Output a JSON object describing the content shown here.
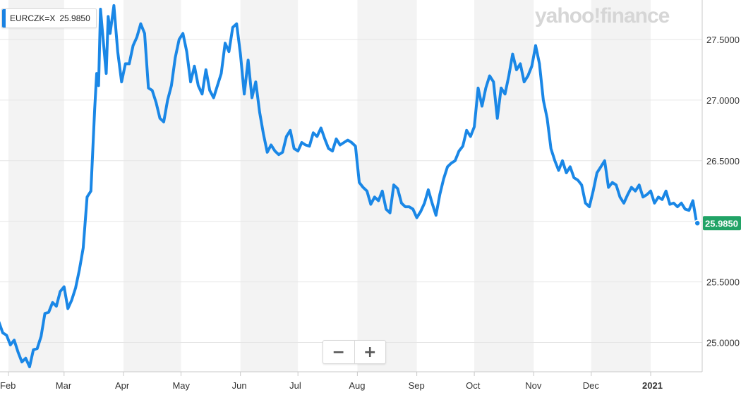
{
  "legend": {
    "symbol": "EURCZK=X",
    "value": "25.9850",
    "color": "#1a82e2"
  },
  "watermark": "yahoo!finance",
  "zoom": {
    "minus": "−",
    "plus": "+"
  },
  "colors": {
    "line": "#1a87e6",
    "band": "#f3f3f3",
    "badge": "#21a366",
    "grid": "#e6e6e6",
    "axis": "#c8c8c8"
  },
  "chart_data": {
    "type": "line",
    "title": "",
    "xlabel": "",
    "ylabel": "",
    "ylim": [
      24.8,
      27.8
    ],
    "yticks": [
      "25.0000",
      "25.5000",
      "26.0000",
      "26.5000",
      "27.0000",
      "27.5000"
    ],
    "ytick_values": [
      25.0,
      25.5,
      26.0,
      26.5,
      27.0,
      27.5
    ],
    "xticks": [
      {
        "label": "Feb",
        "date": "2020-02-01"
      },
      {
        "label": "Mar",
        "date": "2020-03-01"
      },
      {
        "label": "Apr",
        "date": "2020-04-01"
      },
      {
        "label": "May",
        "date": "2020-05-01"
      },
      {
        "label": "Jun",
        "date": "2020-06-01"
      },
      {
        "label": "Jul",
        "date": "2020-07-01"
      },
      {
        "label": "Aug",
        "date": "2020-08-01"
      },
      {
        "label": "Sep",
        "date": "2020-09-01"
      },
      {
        "label": "Oct",
        "date": "2020-10-01"
      },
      {
        "label": "Nov",
        "date": "2020-11-01"
      },
      {
        "label": "Dec",
        "date": "2020-12-01"
      },
      {
        "label": "2021",
        "date": "2021-01-01",
        "bold": true
      }
    ],
    "last_value_label": "25.9850",
    "series": [
      {
        "name": "EURCZK=X",
        "points": [
          [
            "2020-01-21",
            25.2
          ],
          [
            "2020-01-23",
            25.23
          ],
          [
            "2020-01-25",
            25.22
          ],
          [
            "2020-01-27",
            25.17
          ],
          [
            "2020-01-29",
            25.08
          ],
          [
            "2020-01-31",
            25.06
          ],
          [
            "2020-02-02",
            24.98
          ],
          [
            "2020-02-04",
            25.02
          ],
          [
            "2020-02-06",
            24.92
          ],
          [
            "2020-02-08",
            24.84
          ],
          [
            "2020-02-10",
            24.87
          ],
          [
            "2020-02-12",
            24.8
          ],
          [
            "2020-02-14",
            24.94
          ],
          [
            "2020-02-16",
            24.95
          ],
          [
            "2020-02-18",
            25.05
          ],
          [
            "2020-02-20",
            25.24
          ],
          [
            "2020-02-22",
            25.25
          ],
          [
            "2020-02-24",
            25.33
          ],
          [
            "2020-02-26",
            25.3
          ],
          [
            "2020-02-28",
            25.42
          ],
          [
            "2020-03-01",
            25.46
          ],
          [
            "2020-03-03",
            25.28
          ],
          [
            "2020-03-05",
            25.35
          ],
          [
            "2020-03-07",
            25.45
          ],
          [
            "2020-03-09",
            25.6
          ],
          [
            "2020-03-11",
            25.78
          ],
          [
            "2020-03-13",
            26.2
          ],
          [
            "2020-03-15",
            26.25
          ],
          [
            "2020-03-17",
            26.93
          ],
          [
            "2020-03-18",
            27.22
          ],
          [
            "2020-03-19",
            27.12
          ],
          [
            "2020-03-20",
            27.75
          ],
          [
            "2020-03-21",
            27.57
          ],
          [
            "2020-03-23",
            27.22
          ],
          [
            "2020-03-24",
            27.69
          ],
          [
            "2020-03-25",
            27.55
          ],
          [
            "2020-03-27",
            27.78
          ],
          [
            "2020-03-29",
            27.4
          ],
          [
            "2020-03-31",
            27.15
          ],
          [
            "2020-04-02",
            27.3
          ],
          [
            "2020-04-04",
            27.3
          ],
          [
            "2020-04-06",
            27.45
          ],
          [
            "2020-04-08",
            27.52
          ],
          [
            "2020-04-10",
            27.63
          ],
          [
            "2020-04-12",
            27.55
          ],
          [
            "2020-04-14",
            27.1
          ],
          [
            "2020-04-16",
            27.08
          ],
          [
            "2020-04-18",
            26.98
          ],
          [
            "2020-04-20",
            26.85
          ],
          [
            "2020-04-22",
            26.82
          ],
          [
            "2020-04-24",
            27.0
          ],
          [
            "2020-04-26",
            27.12
          ],
          [
            "2020-04-28",
            27.35
          ],
          [
            "2020-04-30",
            27.5
          ],
          [
            "2020-05-02",
            27.55
          ],
          [
            "2020-05-04",
            27.4
          ],
          [
            "2020-05-06",
            27.15
          ],
          [
            "2020-05-08",
            27.28
          ],
          [
            "2020-05-10",
            27.12
          ],
          [
            "2020-05-12",
            27.05
          ],
          [
            "2020-05-14",
            27.25
          ],
          [
            "2020-05-16",
            27.08
          ],
          [
            "2020-05-18",
            27.02
          ],
          [
            "2020-05-20",
            27.12
          ],
          [
            "2020-05-22",
            27.22
          ],
          [
            "2020-05-24",
            27.47
          ],
          [
            "2020-05-26",
            27.4
          ],
          [
            "2020-05-28",
            27.6
          ],
          [
            "2020-05-30",
            27.63
          ],
          [
            "2020-06-01",
            27.38
          ],
          [
            "2020-06-03",
            27.05
          ],
          [
            "2020-06-05",
            27.33
          ],
          [
            "2020-06-07",
            27.02
          ],
          [
            "2020-06-09",
            27.15
          ],
          [
            "2020-06-11",
            26.9
          ],
          [
            "2020-06-13",
            26.72
          ],
          [
            "2020-06-15",
            26.57
          ],
          [
            "2020-06-17",
            26.63
          ],
          [
            "2020-06-19",
            26.58
          ],
          [
            "2020-06-21",
            26.55
          ],
          [
            "2020-06-23",
            26.57
          ],
          [
            "2020-06-25",
            26.7
          ],
          [
            "2020-06-27",
            26.75
          ],
          [
            "2020-06-29",
            26.6
          ],
          [
            "2020-07-01",
            26.58
          ],
          [
            "2020-07-03",
            26.65
          ],
          [
            "2020-07-05",
            26.63
          ],
          [
            "2020-07-07",
            26.62
          ],
          [
            "2020-07-09",
            26.73
          ],
          [
            "2020-07-11",
            26.7
          ],
          [
            "2020-07-13",
            26.77
          ],
          [
            "2020-07-15",
            26.68
          ],
          [
            "2020-07-17",
            26.6
          ],
          [
            "2020-07-19",
            26.58
          ],
          [
            "2020-07-21",
            26.68
          ],
          [
            "2020-07-23",
            26.63
          ],
          [
            "2020-07-25",
            26.65
          ],
          [
            "2020-07-27",
            26.67
          ],
          [
            "2020-07-29",
            26.65
          ],
          [
            "2020-07-31",
            26.62
          ],
          [
            "2020-08-02",
            26.32
          ],
          [
            "2020-08-04",
            26.28
          ],
          [
            "2020-08-06",
            26.25
          ],
          [
            "2020-08-08",
            26.14
          ],
          [
            "2020-08-10",
            26.2
          ],
          [
            "2020-08-12",
            26.17
          ],
          [
            "2020-08-14",
            26.25
          ],
          [
            "2020-08-16",
            26.1
          ],
          [
            "2020-08-18",
            26.07
          ],
          [
            "2020-08-20",
            26.3
          ],
          [
            "2020-08-22",
            26.27
          ],
          [
            "2020-08-24",
            26.15
          ],
          [
            "2020-08-26",
            26.12
          ],
          [
            "2020-08-28",
            26.12
          ],
          [
            "2020-08-30",
            26.1
          ],
          [
            "2020-09-01",
            26.03
          ],
          [
            "2020-09-03",
            26.08
          ],
          [
            "2020-09-05",
            26.15
          ],
          [
            "2020-09-07",
            26.26
          ],
          [
            "2020-09-09",
            26.15
          ],
          [
            "2020-09-11",
            26.05
          ],
          [
            "2020-09-13",
            26.22
          ],
          [
            "2020-09-15",
            26.35
          ],
          [
            "2020-09-17",
            26.45
          ],
          [
            "2020-09-19",
            26.48
          ],
          [
            "2020-09-21",
            26.5
          ],
          [
            "2020-09-23",
            26.58
          ],
          [
            "2020-09-25",
            26.62
          ],
          [
            "2020-09-27",
            26.75
          ],
          [
            "2020-09-29",
            26.7
          ],
          [
            "2020-10-01",
            26.78
          ],
          [
            "2020-10-03",
            27.1
          ],
          [
            "2020-10-05",
            26.95
          ],
          [
            "2020-10-07",
            27.1
          ],
          [
            "2020-10-09",
            27.2
          ],
          [
            "2020-10-11",
            27.15
          ],
          [
            "2020-10-13",
            26.85
          ],
          [
            "2020-10-15",
            27.1
          ],
          [
            "2020-10-17",
            27.05
          ],
          [
            "2020-10-19",
            27.2
          ],
          [
            "2020-10-21",
            27.38
          ],
          [
            "2020-10-23",
            27.25
          ],
          [
            "2020-10-25",
            27.3
          ],
          [
            "2020-10-27",
            27.15
          ],
          [
            "2020-10-29",
            27.2
          ],
          [
            "2020-10-31",
            27.28
          ],
          [
            "2020-11-02",
            27.45
          ],
          [
            "2020-11-04",
            27.3
          ],
          [
            "2020-11-06",
            27.0
          ],
          [
            "2020-11-08",
            26.85
          ],
          [
            "2020-11-10",
            26.6
          ],
          [
            "2020-11-12",
            26.5
          ],
          [
            "2020-11-14",
            26.42
          ],
          [
            "2020-11-16",
            26.5
          ],
          [
            "2020-11-18",
            26.4
          ],
          [
            "2020-11-20",
            26.45
          ],
          [
            "2020-11-22",
            26.36
          ],
          [
            "2020-11-24",
            26.34
          ],
          [
            "2020-11-26",
            26.3
          ],
          [
            "2020-11-28",
            26.15
          ],
          [
            "2020-11-30",
            26.12
          ],
          [
            "2020-12-02",
            26.25
          ],
          [
            "2020-12-04",
            26.4
          ],
          [
            "2020-12-06",
            26.45
          ],
          [
            "2020-12-08",
            26.5
          ],
          [
            "2020-12-10",
            26.28
          ],
          [
            "2020-12-12",
            26.32
          ],
          [
            "2020-12-14",
            26.3
          ],
          [
            "2020-12-16",
            26.2
          ],
          [
            "2020-12-18",
            26.15
          ],
          [
            "2020-12-20",
            26.22
          ],
          [
            "2020-12-22",
            26.28
          ],
          [
            "2020-12-24",
            26.25
          ],
          [
            "2020-12-26",
            26.3
          ],
          [
            "2020-12-28",
            26.2
          ],
          [
            "2020-12-30",
            26.22
          ],
          [
            "2021-01-01",
            26.25
          ],
          [
            "2021-01-03",
            26.15
          ],
          [
            "2021-01-05",
            26.2
          ],
          [
            "2021-01-07",
            26.18
          ],
          [
            "2021-01-09",
            26.25
          ],
          [
            "2021-01-11",
            26.14
          ],
          [
            "2021-01-13",
            26.15
          ],
          [
            "2021-01-15",
            26.12
          ],
          [
            "2021-01-17",
            26.15
          ],
          [
            "2021-01-19",
            26.1
          ],
          [
            "2021-01-21",
            26.09
          ],
          [
            "2021-01-23",
            26.17
          ],
          [
            "2021-01-25",
            25.985
          ]
        ]
      }
    ]
  }
}
